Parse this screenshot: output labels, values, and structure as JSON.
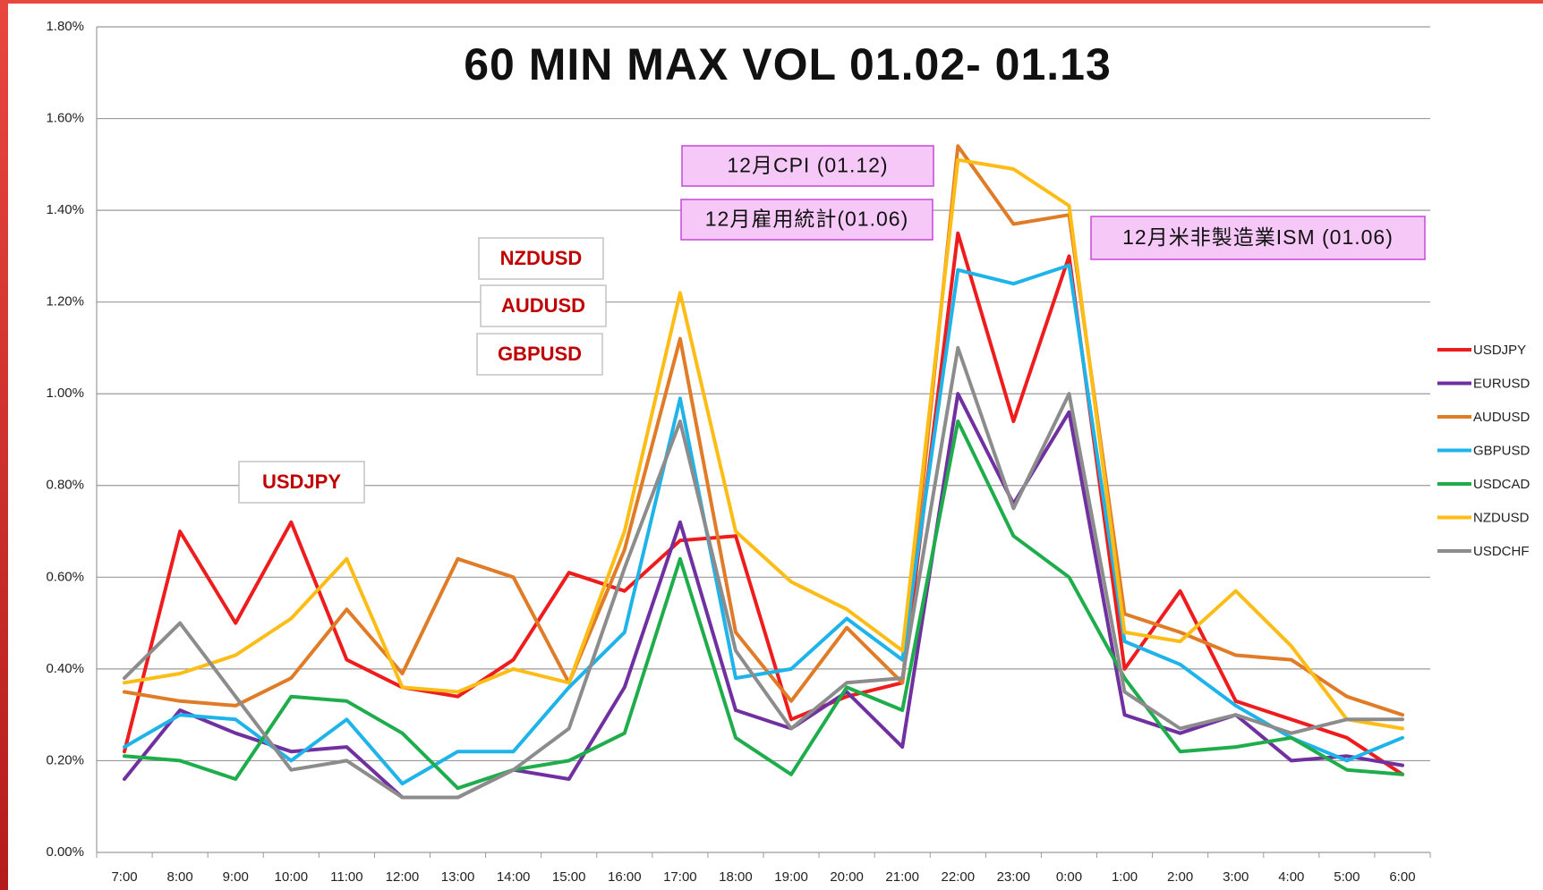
{
  "chart_data": {
    "type": "line",
    "title": "60 MIN MAX VOL  01.02- 01.13",
    "categories": [
      "7:00",
      "8:00",
      "9:00",
      "10:00",
      "11:00",
      "12:00",
      "13:00",
      "14:00",
      "15:00",
      "16:00",
      "17:00",
      "18:00",
      "19:00",
      "20:00",
      "21:00",
      "22:00",
      "23:00",
      "0:00",
      "1:00",
      "2:00",
      "3:00",
      "4:00",
      "5:00",
      "6:00"
    ],
    "series": [
      {
        "name": "USDJPY",
        "color": "#ee1c1c",
        "values": [
          0.22,
          0.7,
          0.5,
          0.72,
          0.42,
          0.36,
          0.34,
          0.42,
          0.61,
          0.57,
          0.68,
          0.69,
          0.29,
          0.34,
          0.37,
          1.35,
          0.94,
          1.3,
          0.4,
          0.57,
          0.33,
          0.29,
          0.25,
          0.17
        ]
      },
      {
        "name": "EURUSD",
        "color": "#7030a0",
        "values": [
          0.16,
          0.31,
          0.26,
          0.22,
          0.23,
          0.12,
          0.12,
          0.18,
          0.16,
          0.36,
          0.72,
          0.31,
          0.27,
          0.35,
          0.23,
          1.0,
          0.76,
          0.96,
          0.3,
          0.26,
          0.3,
          0.2,
          0.21,
          0.19
        ]
      },
      {
        "name": "AUDUSD",
        "color": "#e07b28",
        "values": [
          0.35,
          0.33,
          0.32,
          0.38,
          0.53,
          0.39,
          0.64,
          0.6,
          0.37,
          0.66,
          1.12,
          0.48,
          0.33,
          0.49,
          0.37,
          1.54,
          1.37,
          1.39,
          0.52,
          0.48,
          0.43,
          0.42,
          0.34,
          0.3
        ]
      },
      {
        "name": "GBPUSD",
        "color": "#1eb4ea",
        "values": [
          0.23,
          0.3,
          0.29,
          0.2,
          0.29,
          0.15,
          0.22,
          0.22,
          0.36,
          0.48,
          0.99,
          0.38,
          0.4,
          0.51,
          0.42,
          1.27,
          1.24,
          1.28,
          0.46,
          0.41,
          0.32,
          0.25,
          0.2,
          0.25
        ]
      },
      {
        "name": "USDCAD",
        "color": "#1fad4b",
        "values": [
          0.21,
          0.2,
          0.16,
          0.34,
          0.33,
          0.26,
          0.14,
          0.18,
          0.2,
          0.26,
          0.64,
          0.25,
          0.17,
          0.36,
          0.31,
          0.94,
          0.69,
          0.6,
          0.38,
          0.22,
          0.23,
          0.25,
          0.18,
          0.17
        ]
      },
      {
        "name": "NZDUSD",
        "color": "#fdbd16",
        "values": [
          0.37,
          0.39,
          0.43,
          0.51,
          0.64,
          0.36,
          0.35,
          0.4,
          0.37,
          0.7,
          1.22,
          0.7,
          0.59,
          0.53,
          0.44,
          1.51,
          1.49,
          1.41,
          0.48,
          0.46,
          0.57,
          0.45,
          0.29,
          0.27
        ]
      },
      {
        "name": "USDCHF",
        "color": "#8c8c8c",
        "values": [
          0.38,
          0.5,
          0.34,
          0.18,
          0.2,
          0.12,
          0.12,
          0.18,
          0.27,
          0.62,
          0.94,
          0.44,
          0.27,
          0.37,
          0.38,
          1.1,
          0.75,
          1.0,
          0.35,
          0.27,
          0.3,
          0.26,
          0.29,
          0.29
        ]
      }
    ],
    "ylim": [
      0,
      1.8
    ],
    "yticks": [
      {
        "value": 0,
        "label": "0.00%"
      },
      {
        "value": 0.2,
        "label": "0.20%"
      },
      {
        "value": 0.4,
        "label": "0.40%"
      },
      {
        "value": 0.6,
        "label": "0.60%"
      },
      {
        "value": 0.8,
        "label": "0.80%"
      },
      {
        "value": 1.0,
        "label": "1.00%"
      },
      {
        "value": 1.2,
        "label": "1.20%"
      },
      {
        "value": 1.4,
        "label": "1.40%"
      },
      {
        "value": 1.6,
        "label": "1.60%"
      },
      {
        "value": 1.8,
        "label": "1.80%"
      }
    ],
    "grid": true,
    "legend": "right",
    "annotations": [
      {
        "text": "12月CPI (01.12)"
      },
      {
        "text": "12月雇用統計(01.06)"
      },
      {
        "text": "12月米非製造業ISM (01.06)"
      },
      {
        "text": "NZDUSD"
      },
      {
        "text": "AUDUSD"
      },
      {
        "text": "GBPUSD"
      },
      {
        "text": "USDJPY"
      }
    ]
  }
}
